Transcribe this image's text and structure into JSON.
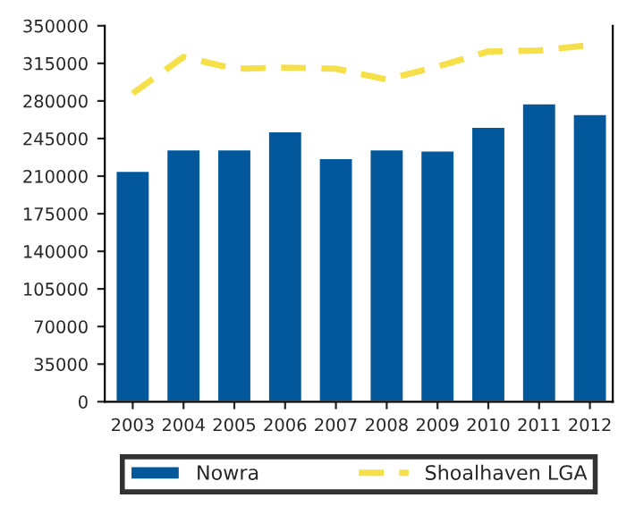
{
  "chart_data": {
    "type": "bar",
    "categories": [
      "2003",
      "2004",
      "2005",
      "2006",
      "2007",
      "2008",
      "2009",
      "2010",
      "2011",
      "2012"
    ],
    "series": [
      {
        "name": "Nowra",
        "color": "#02589a",
        "values": [
          215000,
          235000,
          235000,
          252000,
          227000,
          235000,
          234000,
          256000,
          278000,
          268000
        ]
      },
      {
        "name": "Shoalhaven LGA",
        "type": "line",
        "color": "#f5e04a",
        "line_style": "dashed",
        "values": [
          287000,
          321000,
          310000,
          311000,
          310000,
          300000,
          312000,
          326000,
          327000,
          332000
        ]
      }
    ],
    "ylim": [
      0,
      350000
    ],
    "yticks": [
      0,
      35000,
      70000,
      105000,
      140000,
      175000,
      210000,
      245000,
      280000,
      315000,
      350000
    ],
    "grid": false,
    "legend": "bottom"
  }
}
